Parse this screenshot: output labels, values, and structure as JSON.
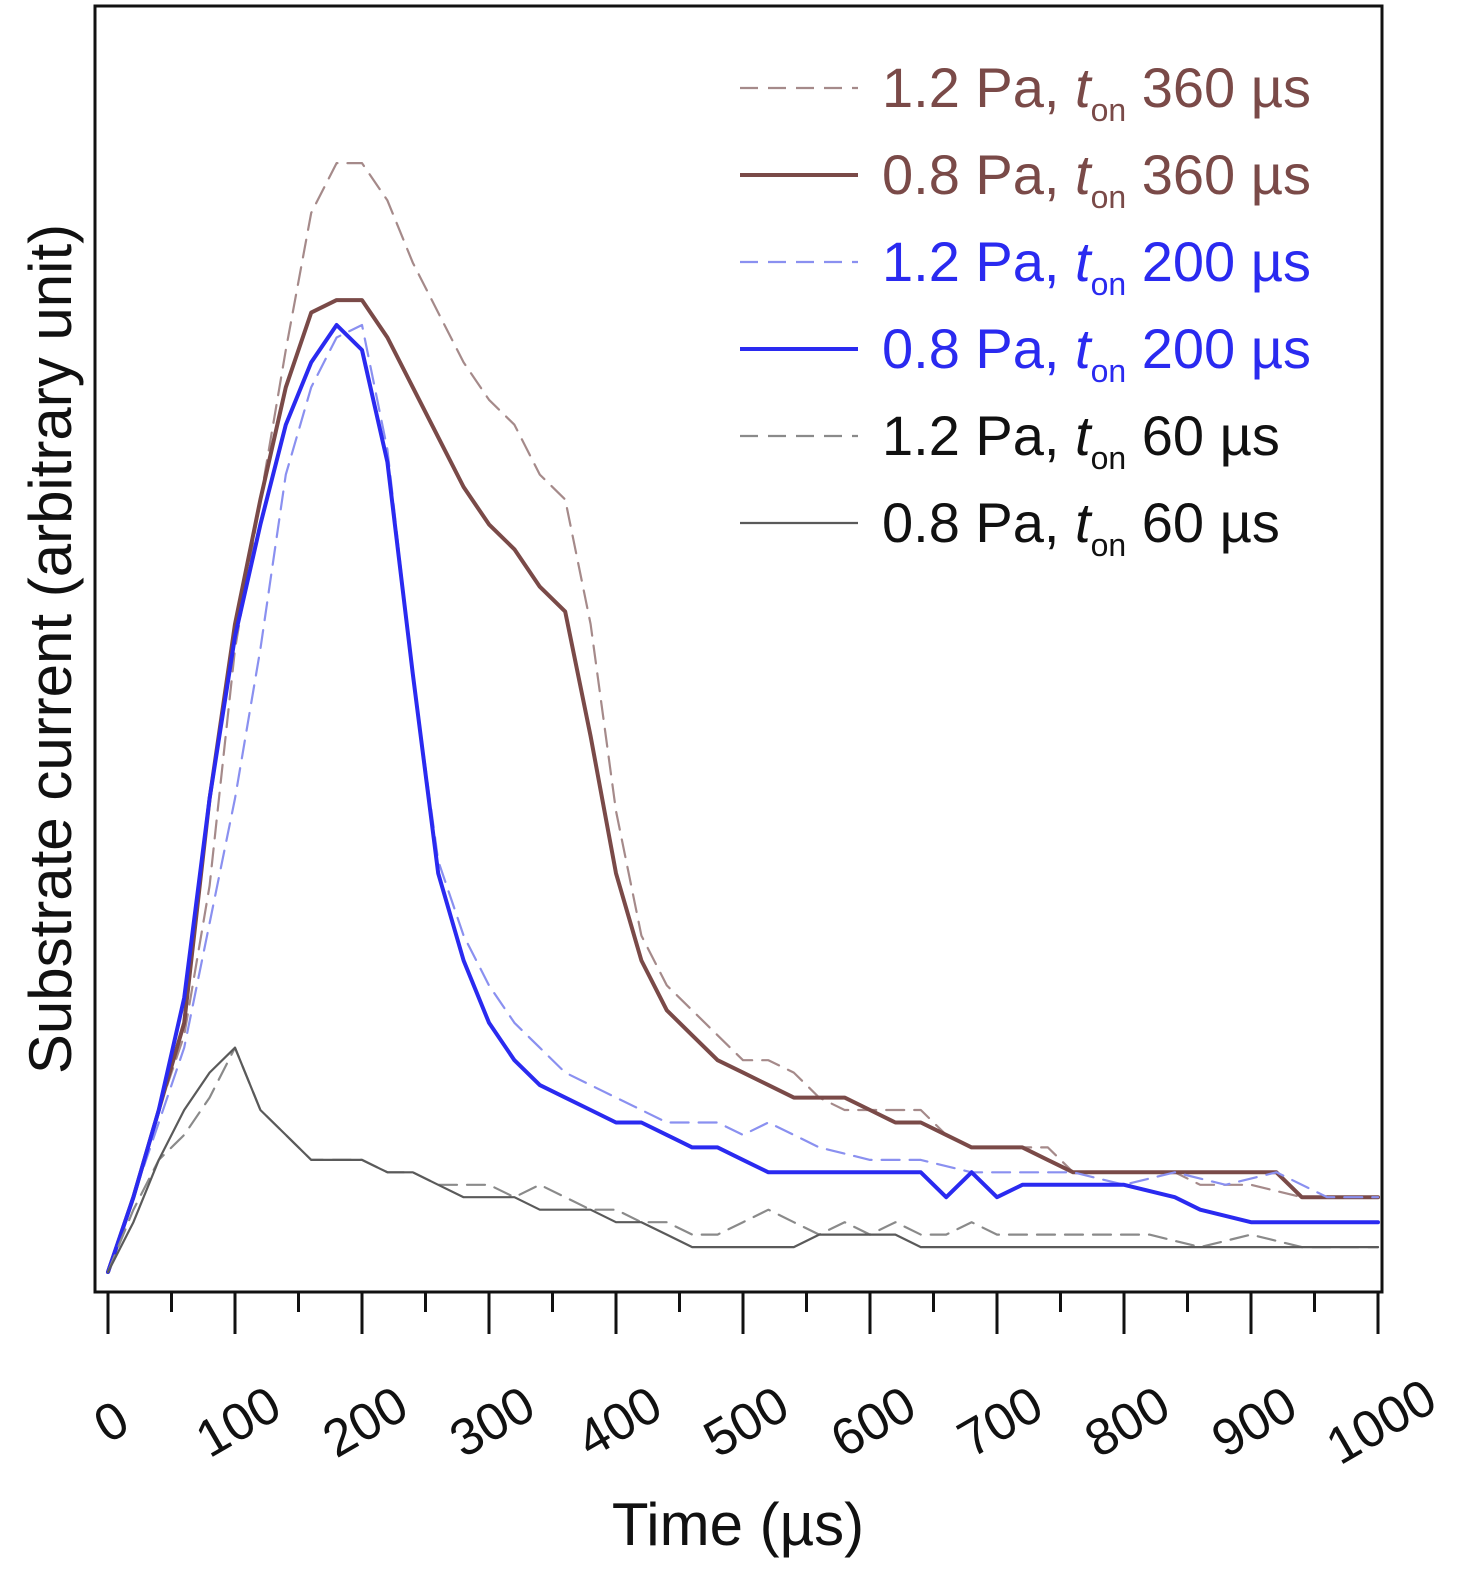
{
  "chart_data": {
    "type": "line",
    "title": "",
    "xlabel": "Time (µs)",
    "ylabel": "Substrate current (arbitrary unit)",
    "xlim": [
      0,
      1000
    ],
    "ylim": [
      0,
      1.0
    ],
    "x_ticks": [
      0,
      100,
      200,
      300,
      400,
      500,
      600,
      700,
      800,
      900,
      1000
    ],
    "x_tick_labels": [
      "0",
      "100",
      "200",
      "300",
      "400",
      "500",
      "600",
      "700",
      "800",
      "900",
      "1000"
    ],
    "y_ticks_shown": false,
    "grid": false,
    "legend_position": "top-right",
    "series": [
      {
        "name": "1.2 Pa, t_on 360 µs",
        "label_prefix": "1.2 Pa, ",
        "label_t": "t",
        "label_sub": "on",
        "label_suffix": " 360 µs",
        "color": "#a58a8a",
        "text_color": "#7a4a48",
        "dash": "dash",
        "width": "thin",
        "points": [
          [
            0,
            0.0
          ],
          [
            20,
            0.06
          ],
          [
            40,
            0.13
          ],
          [
            60,
            0.19
          ],
          [
            80,
            0.31
          ],
          [
            100,
            0.5
          ],
          [
            120,
            0.62
          ],
          [
            140,
            0.74
          ],
          [
            160,
            0.85
          ],
          [
            180,
            0.89
          ],
          [
            200,
            0.89
          ],
          [
            220,
            0.86
          ],
          [
            240,
            0.81
          ],
          [
            260,
            0.77
          ],
          [
            280,
            0.73
          ],
          [
            300,
            0.7
          ],
          [
            320,
            0.68
          ],
          [
            340,
            0.64
          ],
          [
            360,
            0.62
          ],
          [
            380,
            0.52
          ],
          [
            400,
            0.37
          ],
          [
            420,
            0.27
          ],
          [
            440,
            0.23
          ],
          [
            460,
            0.21
          ],
          [
            480,
            0.19
          ],
          [
            500,
            0.17
          ],
          [
            520,
            0.17
          ],
          [
            540,
            0.16
          ],
          [
            560,
            0.14
          ],
          [
            580,
            0.13
          ],
          [
            600,
            0.13
          ],
          [
            620,
            0.13
          ],
          [
            640,
            0.13
          ],
          [
            660,
            0.11
          ],
          [
            680,
            0.1
          ],
          [
            700,
            0.1
          ],
          [
            740,
            0.1
          ],
          [
            760,
            0.08
          ],
          [
            800,
            0.08
          ],
          [
            840,
            0.08
          ],
          [
            860,
            0.07
          ],
          [
            900,
            0.07
          ],
          [
            940,
            0.06
          ],
          [
            1000,
            0.06
          ]
        ]
      },
      {
        "name": "0.8 Pa, t_on 360 µs",
        "label_prefix": "0.8 Pa, ",
        "label_t": "t",
        "label_sub": "on",
        "label_suffix": " 360 µs",
        "color": "#7a4a48",
        "text_color": "#7a4a48",
        "dash": "solid",
        "width": "thick",
        "points": [
          [
            0,
            0.0
          ],
          [
            20,
            0.06
          ],
          [
            40,
            0.13
          ],
          [
            60,
            0.2
          ],
          [
            80,
            0.38
          ],
          [
            100,
            0.52
          ],
          [
            120,
            0.62
          ],
          [
            140,
            0.71
          ],
          [
            160,
            0.77
          ],
          [
            180,
            0.78
          ],
          [
            200,
            0.78
          ],
          [
            220,
            0.75
          ],
          [
            240,
            0.71
          ],
          [
            260,
            0.67
          ],
          [
            280,
            0.63
          ],
          [
            300,
            0.6
          ],
          [
            320,
            0.58
          ],
          [
            340,
            0.55
          ],
          [
            360,
            0.53
          ],
          [
            380,
            0.43
          ],
          [
            400,
            0.32
          ],
          [
            420,
            0.25
          ],
          [
            440,
            0.21
          ],
          [
            460,
            0.19
          ],
          [
            480,
            0.17
          ],
          [
            500,
            0.16
          ],
          [
            520,
            0.15
          ],
          [
            540,
            0.14
          ],
          [
            580,
            0.14
          ],
          [
            600,
            0.13
          ],
          [
            620,
            0.12
          ],
          [
            640,
            0.12
          ],
          [
            660,
            0.11
          ],
          [
            680,
            0.1
          ],
          [
            700,
            0.1
          ],
          [
            720,
            0.1
          ],
          [
            740,
            0.09
          ],
          [
            760,
            0.08
          ],
          [
            800,
            0.08
          ],
          [
            840,
            0.08
          ],
          [
            880,
            0.08
          ],
          [
            920,
            0.08
          ],
          [
            940,
            0.06
          ],
          [
            1000,
            0.06
          ]
        ]
      },
      {
        "name": "1.2 Pa, t_on 200 µs",
        "label_prefix": "1.2 Pa, ",
        "label_t": "t",
        "label_sub": "on",
        "label_suffix": " 200 µs",
        "color": "#8a90f0",
        "text_color": "#2a2af0",
        "dash": "dash",
        "width": "thin",
        "points": [
          [
            0,
            0.0
          ],
          [
            20,
            0.06
          ],
          [
            40,
            0.12
          ],
          [
            60,
            0.18
          ],
          [
            80,
            0.28
          ],
          [
            100,
            0.38
          ],
          [
            120,
            0.5
          ],
          [
            140,
            0.64
          ],
          [
            160,
            0.71
          ],
          [
            180,
            0.75
          ],
          [
            200,
            0.76
          ],
          [
            220,
            0.66
          ],
          [
            240,
            0.48
          ],
          [
            260,
            0.33
          ],
          [
            280,
            0.27
          ],
          [
            300,
            0.23
          ],
          [
            320,
            0.2
          ],
          [
            340,
            0.18
          ],
          [
            360,
            0.16
          ],
          [
            380,
            0.15
          ],
          [
            400,
            0.14
          ],
          [
            420,
            0.13
          ],
          [
            440,
            0.12
          ],
          [
            460,
            0.12
          ],
          [
            480,
            0.12
          ],
          [
            500,
            0.11
          ],
          [
            520,
            0.12
          ],
          [
            540,
            0.11
          ],
          [
            560,
            0.1
          ],
          [
            600,
            0.09
          ],
          [
            640,
            0.09
          ],
          [
            680,
            0.08
          ],
          [
            720,
            0.08
          ],
          [
            760,
            0.08
          ],
          [
            800,
            0.07
          ],
          [
            840,
            0.08
          ],
          [
            880,
            0.07
          ],
          [
            920,
            0.08
          ],
          [
            960,
            0.06
          ],
          [
            1000,
            0.06
          ]
        ]
      },
      {
        "name": "0.8 Pa, t_on 200 µs",
        "label_prefix": "0.8 Pa, ",
        "label_t": "t",
        "label_sub": "on",
        "label_suffix": " 200 µs",
        "color": "#2a2af0",
        "text_color": "#2a2af0",
        "dash": "solid",
        "width": "thick",
        "points": [
          [
            0,
            0.0
          ],
          [
            20,
            0.06
          ],
          [
            40,
            0.13
          ],
          [
            60,
            0.22
          ],
          [
            80,
            0.38
          ],
          [
            100,
            0.51
          ],
          [
            120,
            0.6
          ],
          [
            140,
            0.68
          ],
          [
            160,
            0.73
          ],
          [
            180,
            0.76
          ],
          [
            200,
            0.74
          ],
          [
            220,
            0.65
          ],
          [
            240,
            0.48
          ],
          [
            260,
            0.32
          ],
          [
            280,
            0.25
          ],
          [
            300,
            0.2
          ],
          [
            320,
            0.17
          ],
          [
            340,
            0.15
          ],
          [
            360,
            0.14
          ],
          [
            380,
            0.13
          ],
          [
            400,
            0.12
          ],
          [
            420,
            0.12
          ],
          [
            440,
            0.11
          ],
          [
            460,
            0.1
          ],
          [
            480,
            0.1
          ],
          [
            500,
            0.09
          ],
          [
            520,
            0.08
          ],
          [
            560,
            0.08
          ],
          [
            600,
            0.08
          ],
          [
            640,
            0.08
          ],
          [
            660,
            0.06
          ],
          [
            680,
            0.08
          ],
          [
            700,
            0.06
          ],
          [
            720,
            0.07
          ],
          [
            760,
            0.07
          ],
          [
            800,
            0.07
          ],
          [
            840,
            0.06
          ],
          [
            860,
            0.05
          ],
          [
            900,
            0.04
          ],
          [
            920,
            0.04
          ],
          [
            960,
            0.04
          ],
          [
            1000,
            0.04
          ]
        ]
      },
      {
        "name": "1.2 Pa, t_on 60 µs",
        "label_prefix": "1.2 Pa, ",
        "label_t": "t",
        "label_sub": "on",
        "label_suffix": " 60 µs",
        "color": "#8a8a8a",
        "text_color": "#111111",
        "dash": "dash",
        "width": "thin",
        "points": [
          [
            0,
            0.0
          ],
          [
            20,
            0.05
          ],
          [
            40,
            0.09
          ],
          [
            60,
            0.11
          ],
          [
            80,
            0.14
          ],
          [
            100,
            0.18
          ],
          [
            120,
            0.13
          ],
          [
            140,
            0.11
          ],
          [
            160,
            0.09
          ],
          [
            180,
            0.09
          ],
          [
            200,
            0.09
          ],
          [
            220,
            0.08
          ],
          [
            240,
            0.08
          ],
          [
            260,
            0.07
          ],
          [
            280,
            0.07
          ],
          [
            300,
            0.07
          ],
          [
            320,
            0.06
          ],
          [
            340,
            0.07
          ],
          [
            360,
            0.06
          ],
          [
            380,
            0.05
          ],
          [
            400,
            0.05
          ],
          [
            420,
            0.04
          ],
          [
            440,
            0.04
          ],
          [
            460,
            0.03
          ],
          [
            480,
            0.03
          ],
          [
            500,
            0.04
          ],
          [
            520,
            0.05
          ],
          [
            540,
            0.04
          ],
          [
            560,
            0.03
          ],
          [
            580,
            0.04
          ],
          [
            600,
            0.03
          ],
          [
            620,
            0.04
          ],
          [
            640,
            0.03
          ],
          [
            660,
            0.03
          ],
          [
            680,
            0.04
          ],
          [
            700,
            0.03
          ],
          [
            740,
            0.03
          ],
          [
            780,
            0.03
          ],
          [
            820,
            0.03
          ],
          [
            860,
            0.02
          ],
          [
            900,
            0.03
          ],
          [
            940,
            0.02
          ],
          [
            1000,
            0.02
          ]
        ]
      },
      {
        "name": "0.8 Pa, t_on 60 µs",
        "label_prefix": "0.8 Pa, ",
        "label_t": "t",
        "label_sub": "on",
        "label_suffix": " 60 µs",
        "color": "#5a5a5a",
        "text_color": "#111111",
        "dash": "solid",
        "width": "thin",
        "points": [
          [
            0,
            0.0
          ],
          [
            20,
            0.04
          ],
          [
            40,
            0.09
          ],
          [
            60,
            0.13
          ],
          [
            80,
            0.16
          ],
          [
            100,
            0.18
          ],
          [
            120,
            0.13
          ],
          [
            140,
            0.11
          ],
          [
            160,
            0.09
          ],
          [
            180,
            0.09
          ],
          [
            200,
            0.09
          ],
          [
            220,
            0.08
          ],
          [
            240,
            0.08
          ],
          [
            260,
            0.07
          ],
          [
            280,
            0.06
          ],
          [
            300,
            0.06
          ],
          [
            320,
            0.06
          ],
          [
            340,
            0.05
          ],
          [
            360,
            0.05
          ],
          [
            380,
            0.05
          ],
          [
            400,
            0.04
          ],
          [
            420,
            0.04
          ],
          [
            440,
            0.03
          ],
          [
            460,
            0.02
          ],
          [
            480,
            0.02
          ],
          [
            500,
            0.02
          ],
          [
            520,
            0.02
          ],
          [
            540,
            0.02
          ],
          [
            560,
            0.03
          ],
          [
            580,
            0.03
          ],
          [
            600,
            0.03
          ],
          [
            620,
            0.03
          ],
          [
            640,
            0.02
          ],
          [
            660,
            0.02
          ],
          [
            700,
            0.02
          ],
          [
            740,
            0.02
          ],
          [
            780,
            0.02
          ],
          [
            820,
            0.02
          ],
          [
            860,
            0.02
          ],
          [
            900,
            0.02
          ],
          [
            940,
            0.02
          ],
          [
            1000,
            0.02
          ]
        ]
      }
    ]
  }
}
